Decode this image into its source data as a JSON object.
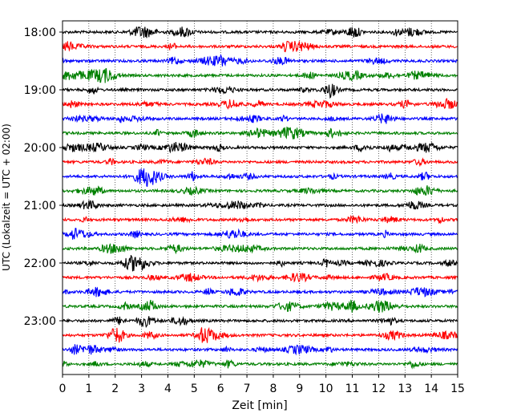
{
  "chart_data": {
    "type": "line",
    "title": "",
    "xlabel": "Zeit  [min]",
    "ylabel": "UTC (Lokalzeit = UTC + 02:00)",
    "xlim": [
      0,
      15
    ],
    "x_ticks": [
      0,
      1,
      2,
      3,
      4,
      5,
      6,
      7,
      8,
      9,
      10,
      11,
      12,
      13,
      14,
      15
    ],
    "x_tick_labels": [
      "0",
      "1",
      "2",
      "3",
      "4",
      "5",
      "6",
      "7",
      "8",
      "9",
      "10",
      "11",
      "12",
      "13",
      "14",
      "15"
    ],
    "grid": "vertical dotted",
    "y_tick_labels": [
      "18:00",
      "19:00",
      "20:00",
      "21:00",
      "22:00",
      "23:00"
    ],
    "y_tick_rows": [
      0,
      4,
      8,
      12,
      16,
      20
    ],
    "trace_start_times": [
      "18:00",
      "18:15",
      "18:30",
      "18:45",
      "19:00",
      "19:15",
      "19:30",
      "19:45",
      "20:00",
      "20:15",
      "20:30",
      "20:45",
      "21:00",
      "21:15",
      "21:30",
      "21:45",
      "22:00",
      "22:15",
      "22:30",
      "22:45",
      "23:00",
      "23:15",
      "23:30",
      "23:45"
    ],
    "trace_colors": [
      "#000000",
      "#ff0000",
      "#0000ff",
      "#008000"
    ]
  }
}
